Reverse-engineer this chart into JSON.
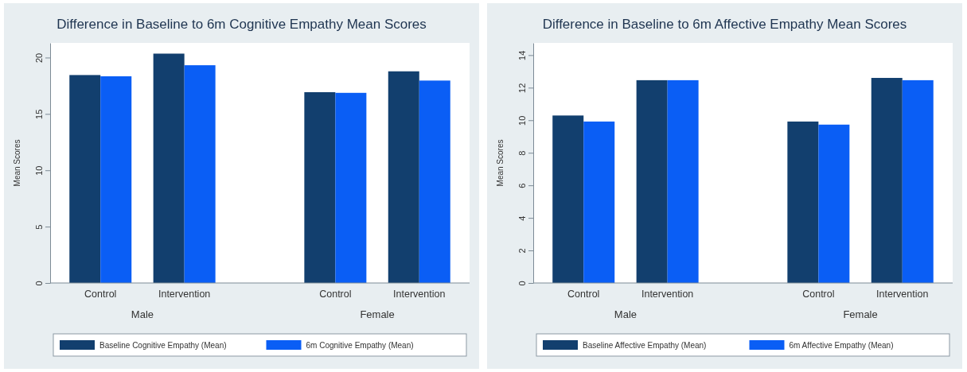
{
  "chart_data": [
    {
      "type": "bar",
      "title": "Difference in Baseline to 6m Cognitive Empathy Mean Scores",
      "ylabel": "Mean Scores",
      "categories": [
        "Control",
        "Intervention",
        "Control",
        "Intervention"
      ],
      "annotations": [
        "Male",
        "Female"
      ],
      "series": [
        {
          "name": "Baseline Cognitive Empathy (Mean)",
          "color": "#123f6e",
          "values": [
            18.45,
            20.35,
            16.93,
            18.78
          ]
        },
        {
          "name": "6m Cognitive Empathy (Mean)",
          "color": "#0a5ef5",
          "values": [
            18.34,
            19.32,
            16.87,
            17.96
          ]
        }
      ],
      "ylim": [
        0,
        21.3
      ],
      "yticks": [
        0,
        5,
        10,
        15,
        20
      ],
      "grid": false,
      "legend": "bottom"
    },
    {
      "type": "bar",
      "title": "Difference in Baseline to 6m Affective Empathy Mean Scores",
      "ylabel": "Mean Scores",
      "categories": [
        "Control",
        "Intervention",
        "Control",
        "Intervention"
      ],
      "annotations": [
        "Male",
        "Female"
      ],
      "series": [
        {
          "name": "Baseline Affective Empathy (Mean)",
          "color": "#123f6e",
          "values": [
            10.29,
            12.46,
            9.92,
            12.6
          ]
        },
        {
          "name": "6m Affective Empathy (Mean)",
          "color": "#0a5ef5",
          "values": [
            9.92,
            12.46,
            9.73,
            12.46
          ]
        }
      ],
      "ylim": [
        0,
        14.75
      ],
      "yticks": [
        0,
        2,
        4,
        6,
        8,
        10,
        12,
        14
      ],
      "grid": false,
      "legend": "bottom"
    }
  ]
}
